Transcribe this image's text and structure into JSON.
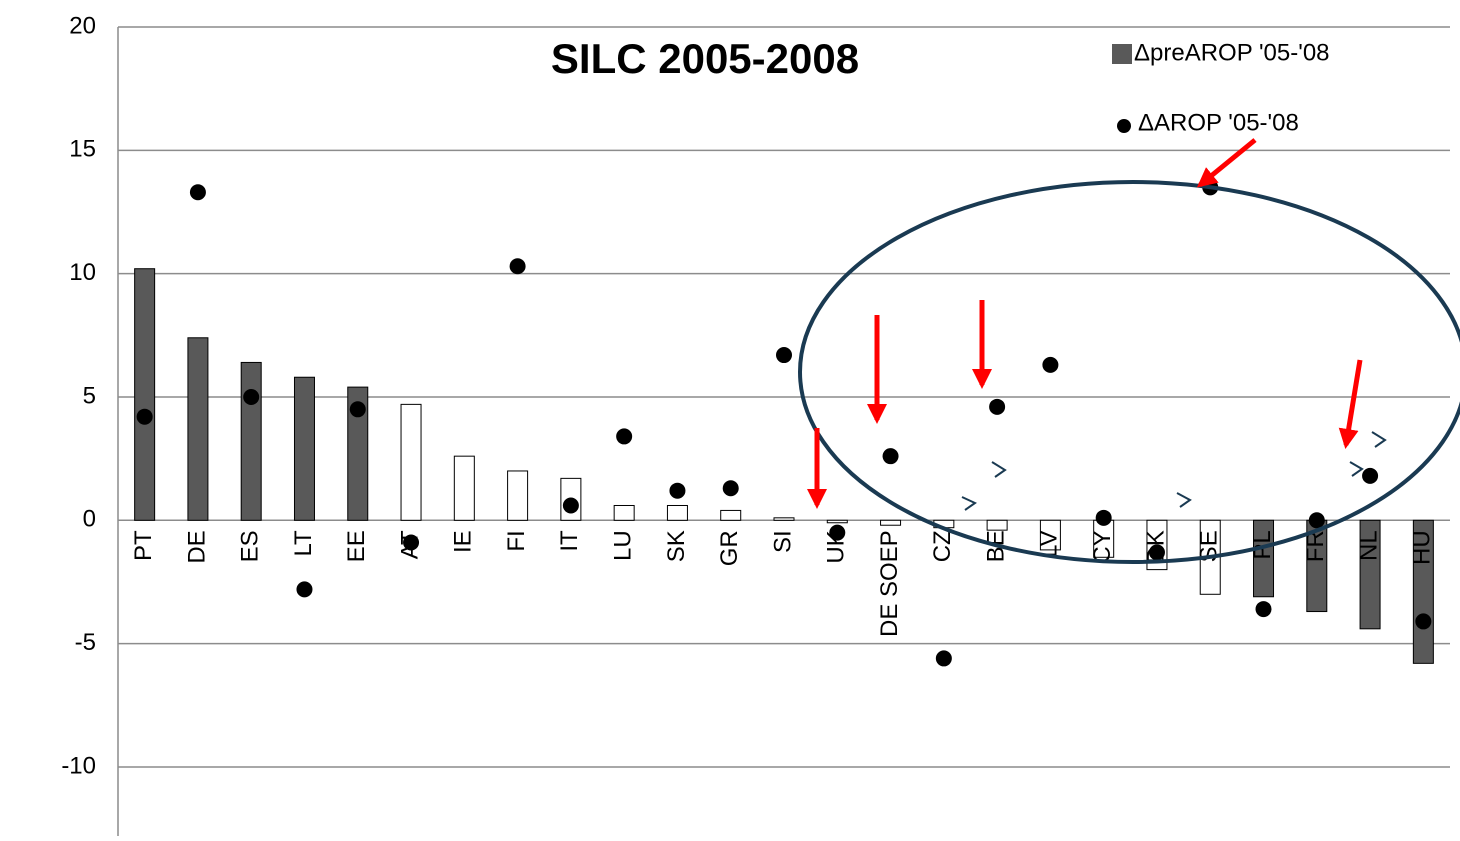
{
  "chart_data": {
    "type": "bar_scatter",
    "title": "SILC 2005-2008",
    "categories": [
      "PT",
      "DE",
      "ES",
      "LT",
      "EE",
      "AT",
      "IE",
      "FI",
      "IT",
      "LU",
      "SK",
      "GR",
      "SI",
      "UK",
      "DE SOEP",
      "CZ",
      "BE",
      "LV",
      "CY",
      "DK",
      "SE",
      "PL",
      "FR",
      "NL",
      "HU"
    ],
    "series": [
      {
        "name": "ΔpreAROP '05-'08",
        "color": "#595959",
        "bar_colors": [
          "#595959",
          "#595959",
          "#595959",
          "#595959",
          "#595959",
          "#ffffff",
          "#ffffff",
          "#ffffff",
          "#ffffff",
          "#ffffff",
          "#ffffff",
          "#ffffff",
          "#ffffff",
          "#ffffff",
          "#ffffff",
          "#ffffff",
          "#ffffff",
          "#ffffff",
          "#ffffff",
          "#ffffff",
          "#ffffff",
          "#595959",
          "#595959",
          "#595959",
          "#595959"
        ],
        "values": [
          10.2,
          7.4,
          6.4,
          5.8,
          5.4,
          4.7,
          2.6,
          2.0,
          1.7,
          0.6,
          0.6,
          0.4,
          0.1,
          -0.1,
          -0.2,
          -0.3,
          -0.4,
          -1.2,
          -1.5,
          -2.0,
          -3.0,
          -3.1,
          -3.7,
          -4.4,
          -5.8
        ]
      },
      {
        "name": "ΔAROP '05-'08",
        "color": "#000000",
        "values": [
          4.2,
          13.3,
          5.0,
          -2.8,
          4.5,
          -0.9,
          null,
          10.3,
          0.6,
          3.4,
          1.2,
          1.3,
          6.7,
          -0.5,
          2.6,
          -5.6,
          4.6,
          6.3,
          0.1,
          -1.3,
          13.5,
          -3.6,
          0.0,
          1.8,
          -4.1
        ]
      }
    ],
    "ylim": [
      -12.8,
      20
    ],
    "yticks": [
      20,
      15,
      10,
      5,
      0,
      -5,
      -10
    ],
    "grid": true
  }
}
